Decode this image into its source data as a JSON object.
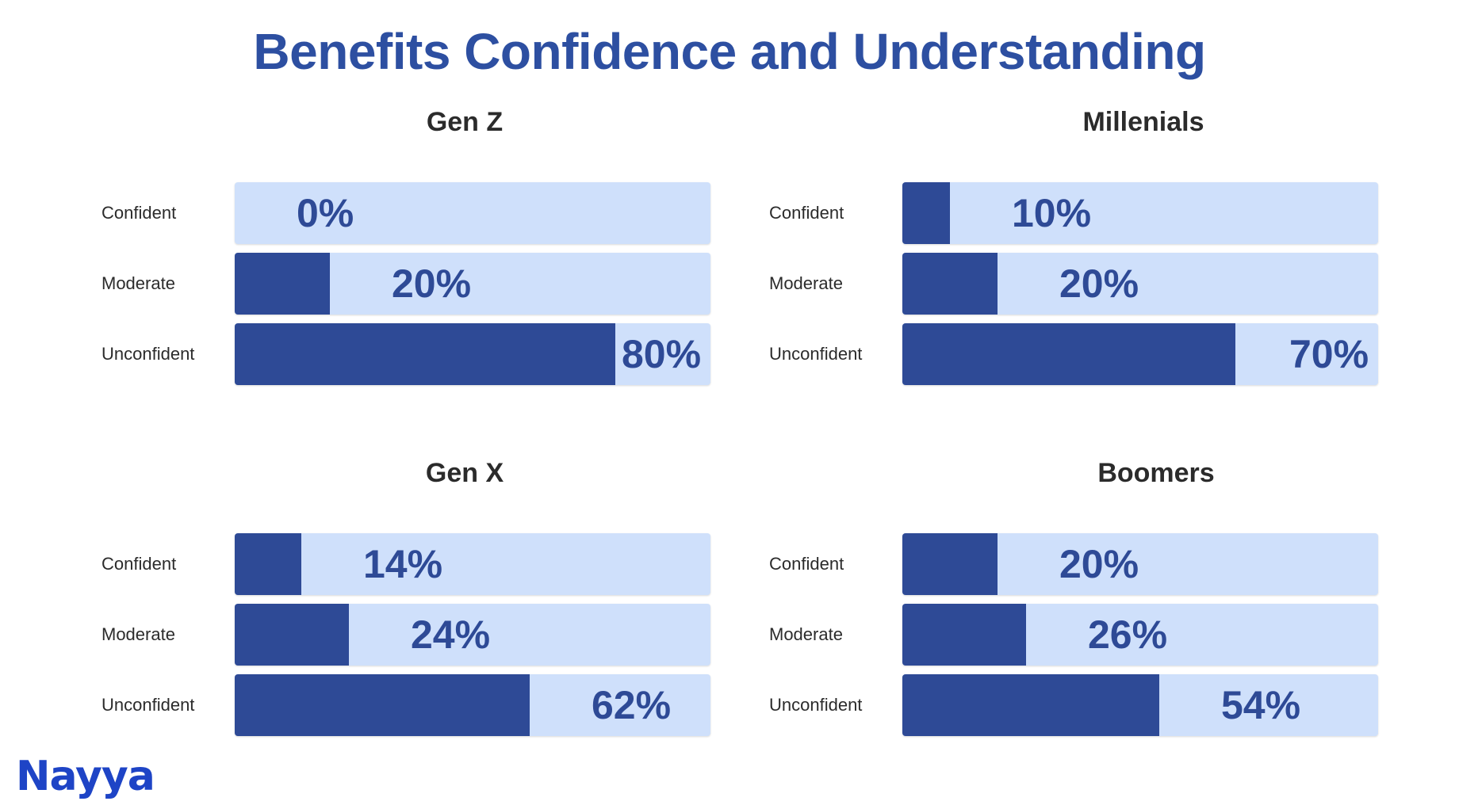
{
  "title": "Benefits Confidence and Understanding",
  "logo": "Nayya",
  "colors": {
    "title": "#2d4fa1",
    "bar_fill": "#2e4a96",
    "bar_track": "#cfe0fb",
    "logo": "#1e44c6"
  },
  "chart_data": [
    {
      "type": "bar",
      "orientation": "horizontal",
      "title": "Gen Z",
      "categories": [
        "Confident",
        "Moderate",
        "Unconfident"
      ],
      "values": [
        0,
        20,
        80
      ],
      "value_labels": [
        "0%",
        "20%",
        "80%"
      ],
      "xlim": [
        0,
        100
      ]
    },
    {
      "type": "bar",
      "orientation": "horizontal",
      "title": "Millenials",
      "categories": [
        "Confident",
        "Moderate",
        "Unconfident"
      ],
      "values": [
        10,
        20,
        70
      ],
      "value_labels": [
        "10%",
        "20%",
        "70%"
      ],
      "xlim": [
        0,
        100
      ]
    },
    {
      "type": "bar",
      "orientation": "horizontal",
      "title": "Gen X",
      "categories": [
        "Confident",
        "Moderate",
        "Unconfident"
      ],
      "values": [
        14,
        24,
        62
      ],
      "value_labels": [
        "14%",
        "24%",
        "62%"
      ],
      "xlim": [
        0,
        100
      ]
    },
    {
      "type": "bar",
      "orientation": "horizontal",
      "title": "Boomers",
      "categories": [
        "Confident",
        "Moderate",
        "Unconfident"
      ],
      "values": [
        20,
        26,
        54
      ],
      "value_labels": [
        "20%",
        "26%",
        "54%"
      ],
      "xlim": [
        0,
        100
      ]
    }
  ]
}
